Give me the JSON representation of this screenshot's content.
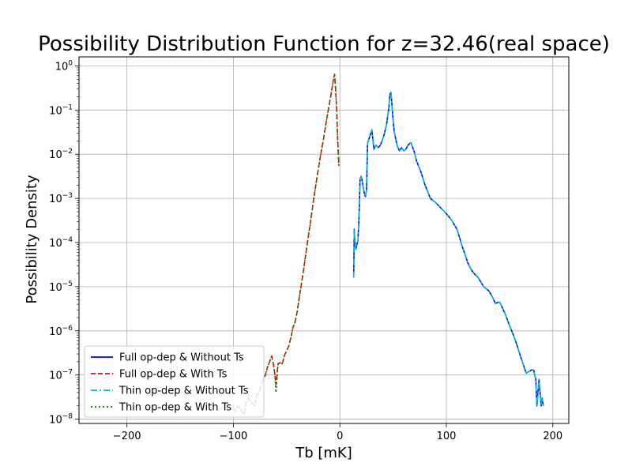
{
  "chart_data": {
    "type": "line",
    "title": "Possibility Distribution Function for z=32.46(real space)",
    "xlabel": "Tb [mK]",
    "ylabel": "Possibility Density",
    "xlim": [
      -245,
      215
    ],
    "ylim": [
      8e-09,
      1.6
    ],
    "yscale": "log",
    "grid": true,
    "legend_position": "lower-left",
    "x_ticks": [
      -200,
      -100,
      0,
      100,
      200
    ],
    "x_tick_labels": [
      "−200",
      "−100",
      "0",
      "100",
      "200"
    ],
    "y_tick_exponents": [
      -8,
      -7,
      -6,
      -5,
      -4,
      -3,
      -2,
      -1,
      0
    ],
    "series": [
      {
        "name": "Full op-dep & Without Ts",
        "color": "#0000ff",
        "style": "solid",
        "x": [
          13,
          13.5,
          14,
          15,
          16,
          17,
          18,
          19,
          20,
          21,
          22,
          23,
          24,
          25,
          26,
          28,
          30,
          32,
          34,
          36,
          38,
          40,
          42,
          44,
          46,
          47,
          48,
          49,
          50,
          51,
          52,
          54,
          56,
          58,
          60,
          62,
          64,
          66,
          67,
          68,
          70,
          72,
          74,
          76,
          80,
          85,
          90,
          95,
          100,
          105,
          110,
          115,
          118,
          120,
          123,
          126,
          130,
          135,
          140,
          143,
          146,
          150,
          155,
          160,
          163,
          166,
          170,
          175,
          180,
          182,
          183,
          184,
          185,
          186,
          187,
          188,
          189,
          190,
          191
        ],
        "y": [
          1.6e-05,
          0.0002,
          0.0001,
          7e-05,
          9e-05,
          0.00011,
          0.0004,
          0.0028,
          0.0032,
          0.0025,
          0.0017,
          0.0013,
          0.0011,
          0.0015,
          0.018,
          0.025,
          0.036,
          0.013,
          0.016,
          0.014,
          0.016,
          0.021,
          0.03,
          0.05,
          0.11,
          0.23,
          0.25,
          0.12,
          0.06,
          0.032,
          0.025,
          0.015,
          0.012,
          0.014,
          0.012,
          0.013,
          0.016,
          0.018,
          0.018,
          0.015,
          0.011,
          0.007,
          0.0053,
          0.004,
          0.002,
          0.001,
          0.0008,
          0.0006,
          0.00045,
          0.00032,
          0.0002,
          8e-05,
          5e-05,
          3.5e-05,
          2.5e-05,
          2e-05,
          1.6e-05,
          1e-05,
          8e-06,
          6e-06,
          4.2e-06,
          4.5e-06,
          2.5e-06,
          1.2e-06,
          8e-07,
          5e-07,
          2.5e-07,
          1.1e-07,
          1.3e-07,
          1.3e-07,
          1e-07,
          8e-08,
          2e-08,
          4e-08,
          8e-08,
          4e-08,
          2e-08,
          3e-08,
          2e-08
        ]
      },
      {
        "name": "Full op-dep & With Ts",
        "color": "#ff0000",
        "style": "dashed",
        "x": [
          -100,
          -98,
          -96,
          -94,
          -92,
          -90,
          -88,
          -86,
          -84,
          -82,
          -80,
          -78,
          -76,
          -74,
          -72,
          -70,
          -68,
          -66,
          -64,
          -62,
          -61,
          -60,
          -58,
          -56,
          -54,
          -52,
          -50,
          -48,
          -46,
          -44,
          -42,
          -40,
          -38,
          -36,
          -34,
          -32,
          -30,
          -28,
          -26,
          -24,
          -22,
          -20,
          -18,
          -16,
          -14,
          -12,
          -10,
          -8,
          -6,
          -5,
          -4,
          -3,
          -2,
          -1
        ],
        "y": [
          1.8e-08,
          1.5e-08,
          2e-08,
          1.8e-08,
          1.5e-08,
          1.3e-08,
          2.5e-08,
          3e-08,
          2.5e-08,
          2.2e-08,
          2e-08,
          3.5e-08,
          4e-08,
          6e-08,
          8e-08,
          1e-07,
          1.5e-07,
          2e-07,
          2.7e-07,
          1.5e-07,
          1e-07,
          6e-08,
          1.8e-07,
          1.9e-07,
          1.8e-07,
          2.8e-07,
          3.5e-07,
          4.5e-07,
          7e-07,
          1.2e-06,
          1.6e-06,
          2.8e-06,
          6e-06,
          1.2e-05,
          2.5e-05,
          5.5e-05,
          0.00012,
          0.00025,
          0.00055,
          0.0012,
          0.0025,
          0.005,
          0.01,
          0.018,
          0.035,
          0.07,
          0.13,
          0.25,
          0.5,
          0.65,
          0.3,
          0.1,
          0.02,
          0.0055
        ]
      },
      {
        "name": "Thin op-dep & Without Ts",
        "color": "#00bfbf",
        "style": "dashdot",
        "x": [
          13,
          13.5,
          14,
          15,
          16,
          17,
          18,
          19,
          20,
          21,
          22,
          23,
          24,
          25,
          26,
          28,
          30,
          32,
          34,
          36,
          38,
          40,
          42,
          44,
          46,
          47,
          48,
          49,
          50,
          51,
          52,
          54,
          56,
          58,
          60,
          62,
          64,
          66,
          67,
          68,
          70,
          72,
          74,
          76,
          80,
          85,
          90,
          95,
          100,
          105,
          110,
          115,
          118,
          120,
          123,
          126,
          130,
          135,
          140,
          143,
          146,
          150,
          155,
          160,
          163,
          166,
          170,
          175,
          180,
          182,
          183,
          184,
          185,
          186,
          187,
          188,
          189,
          190,
          191
        ],
        "y": [
          1.6e-05,
          0.0002,
          0.0001,
          7e-05,
          9e-05,
          0.00011,
          0.0004,
          0.0028,
          0.0032,
          0.0025,
          0.0017,
          0.0013,
          0.0011,
          0.0015,
          0.018,
          0.025,
          0.036,
          0.013,
          0.016,
          0.014,
          0.016,
          0.021,
          0.03,
          0.05,
          0.11,
          0.23,
          0.25,
          0.12,
          0.06,
          0.032,
          0.025,
          0.015,
          0.012,
          0.014,
          0.012,
          0.013,
          0.016,
          0.018,
          0.018,
          0.015,
          0.011,
          0.007,
          0.0053,
          0.004,
          0.002,
          0.001,
          0.0008,
          0.0006,
          0.00045,
          0.00032,
          0.0002,
          8e-05,
          5e-05,
          3.5e-05,
          2.5e-05,
          2e-05,
          1.6e-05,
          1e-05,
          8e-06,
          6e-06,
          4.2e-06,
          4.5e-06,
          2.5e-06,
          1.2e-06,
          8e-07,
          5e-07,
          2.5e-07,
          1.1e-07,
          1.3e-07,
          1.3e-07,
          1e-07,
          8e-08,
          2e-08,
          4e-08,
          8e-08,
          4e-08,
          2e-08,
          3e-08,
          2e-08
        ]
      },
      {
        "name": "Thin op-dep & With Ts",
        "color": "#008000",
        "style": "dotted",
        "x": [
          -100,
          -98,
          -96,
          -94,
          -92,
          -90,
          -88,
          -86,
          -84,
          -82,
          -80,
          -78,
          -76,
          -74,
          -72,
          -70,
          -68,
          -66,
          -64,
          -62,
          -61,
          -60,
          -58,
          -56,
          -54,
          -52,
          -50,
          -48,
          -46,
          -44,
          -42,
          -40,
          -38,
          -36,
          -34,
          -32,
          -30,
          -28,
          -26,
          -24,
          -22,
          -20,
          -18,
          -16,
          -14,
          -12,
          -10,
          -8,
          -6,
          -5,
          -4,
          -3,
          -2,
          -1
        ],
        "y": [
          1.8e-08,
          1.5e-08,
          2e-08,
          1.8e-08,
          1.5e-08,
          1.3e-08,
          2.5e-08,
          3e-08,
          2.5e-08,
          2.2e-08,
          2e-08,
          3.5e-08,
          4e-08,
          6e-08,
          8e-08,
          1e-07,
          1.5e-07,
          2e-07,
          2.7e-07,
          1.5e-07,
          1e-07,
          4e-08,
          1.8e-07,
          1.9e-07,
          1.8e-07,
          2.8e-07,
          3.5e-07,
          4.5e-07,
          7e-07,
          1.2e-06,
          1.6e-06,
          2.8e-06,
          6e-06,
          1.2e-05,
          2.5e-05,
          5.5e-05,
          0.00012,
          0.00025,
          0.00055,
          0.0012,
          0.0025,
          0.005,
          0.01,
          0.018,
          0.035,
          0.07,
          0.13,
          0.25,
          0.5,
          0.65,
          0.3,
          0.1,
          0.02,
          0.0055
        ]
      }
    ]
  }
}
